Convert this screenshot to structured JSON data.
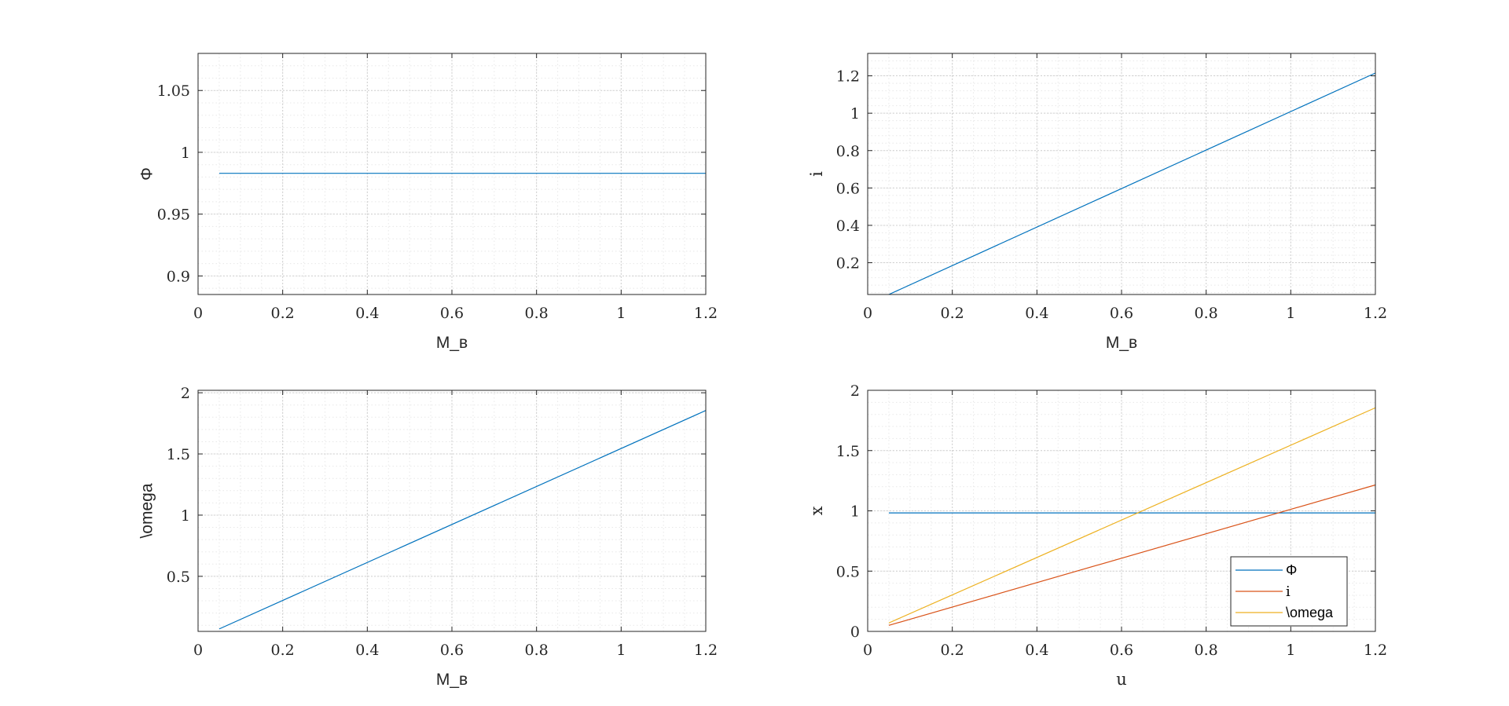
{
  "chart_data": [
    {
      "type": "line",
      "xlabel": "M_в",
      "ylabel": "Φ",
      "xlim": [
        0,
        1.2
      ],
      "ylim": [
        0.885,
        1.08
      ],
      "xticks": [
        "0",
        "0.2",
        "0.4",
        "0.6",
        "0.8",
        "1",
        "1.2"
      ],
      "yticks": [
        "0.9",
        "0.95",
        "1",
        "1.05"
      ],
      "grid": true,
      "minor_grid": true,
      "series": [
        {
          "x": [
            0.05,
            1.2
          ],
          "y": [
            0.983,
            0.983
          ],
          "color": "#0072BD"
        }
      ]
    },
    {
      "type": "line",
      "xlabel": "M_в",
      "ylabel": "i",
      "xlim": [
        0,
        1.2
      ],
      "ylim": [
        0.03,
        1.32
      ],
      "xticks": [
        "0",
        "0.2",
        "0.4",
        "0.6",
        "0.8",
        "1",
        "1.2"
      ],
      "yticks": [
        "0.2",
        "0.4",
        "0.6",
        "0.8",
        "1",
        "1.2"
      ],
      "grid": true,
      "minor_grid": true,
      "series": [
        {
          "x": [
            0.05,
            1.2
          ],
          "y": [
            0.03,
            1.215
          ],
          "color": "#0072BD"
        }
      ]
    },
    {
      "type": "line",
      "xlabel": "M_в",
      "ylabel": "\\omega",
      "xlim": [
        0,
        1.2
      ],
      "ylim": [
        0.05,
        2.02
      ],
      "xticks": [
        "0",
        "0.2",
        "0.4",
        "0.6",
        "0.8",
        "1",
        "1.2"
      ],
      "yticks": [
        "0.5",
        "1",
        "1.5",
        "2"
      ],
      "grid": true,
      "minor_grid": true,
      "series": [
        {
          "x": [
            0.05,
            1.2
          ],
          "y": [
            0.07,
            1.855
          ],
          "color": "#0072BD"
        }
      ]
    },
    {
      "type": "line",
      "xlabel": "u",
      "ylabel": "x",
      "xlim": [
        0,
        1.2
      ],
      "ylim": [
        0,
        2
      ],
      "xticks": [
        "0",
        "0.2",
        "0.4",
        "0.6",
        "0.8",
        "1",
        "1.2"
      ],
      "yticks": [
        "0",
        "0.5",
        "1",
        "1.5",
        "2"
      ],
      "grid": true,
      "minor_grid": true,
      "legend": "bottom-right",
      "series": [
        {
          "name": "Φ",
          "x": [
            0.05,
            1.2
          ],
          "y": [
            0.983,
            0.983
          ],
          "color": "#0072BD"
        },
        {
          "name": "i",
          "x": [
            0.05,
            1.2
          ],
          "y": [
            0.05,
            1.215
          ],
          "color": "#D95319"
        },
        {
          "name": "\\omega",
          "x": [
            0.05,
            1.2
          ],
          "y": [
            0.07,
            1.855
          ],
          "color": "#EDB120"
        }
      ]
    }
  ]
}
